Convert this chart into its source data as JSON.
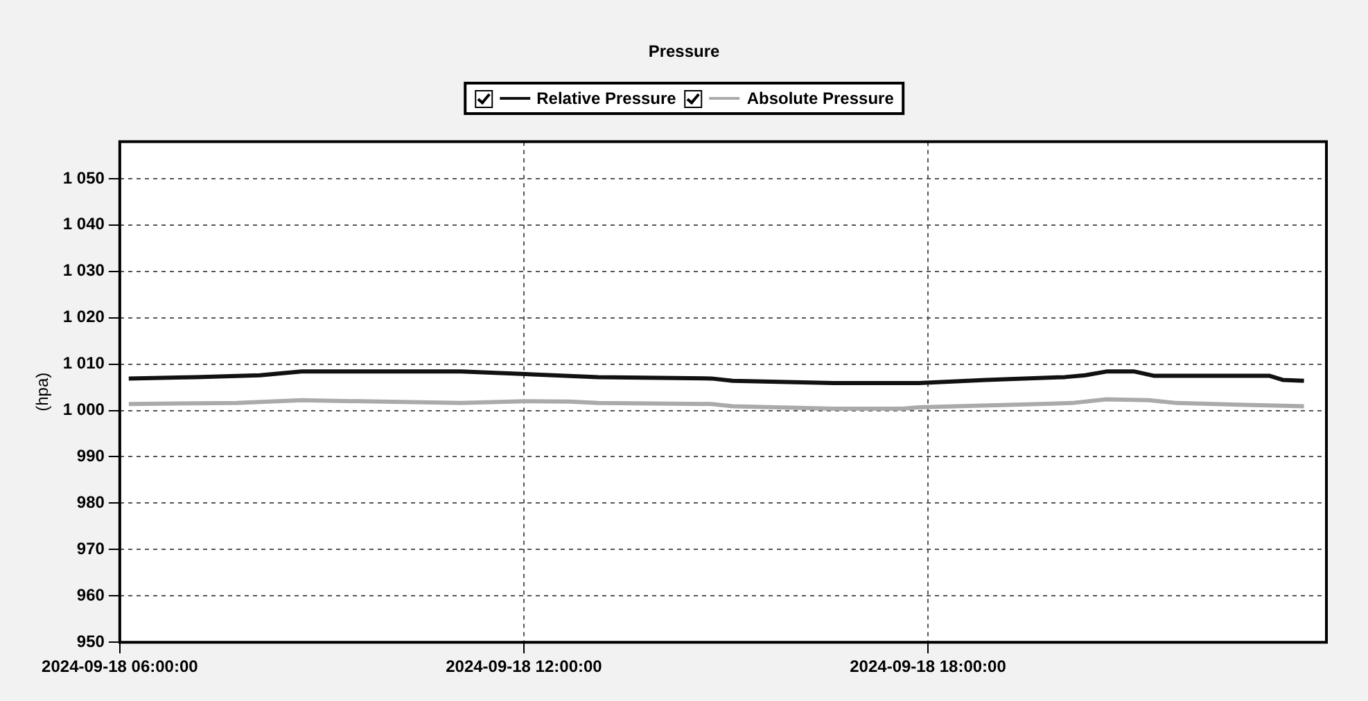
{
  "chart_data": {
    "type": "line",
    "title": "Pressure",
    "ylabel": "(hpa)",
    "series": [
      {
        "name": "Relative Pressure",
        "color": "#111111",
        "x": [
          "2024-09-18T06:08",
          "2024-09-18T07:08",
          "2024-09-18T08:05",
          "2024-09-18T08:42",
          "2024-09-18T11:04",
          "2024-09-18T13:06",
          "2024-09-18T14:47",
          "2024-09-18T15:06",
          "2024-09-18T16:36",
          "2024-09-18T17:52",
          "2024-09-18T18:52",
          "2024-09-18T20:02",
          "2024-09-18T20:20",
          "2024-09-18T20:39",
          "2024-09-18T21:04",
          "2024-09-18T21:21",
          "2024-09-18T23:04",
          "2024-09-18T23:16",
          "2024-09-18T23:35"
        ],
        "values": [
          1006.9,
          1007.2,
          1007.6,
          1008.4,
          1008.4,
          1007.2,
          1006.9,
          1006.4,
          1005.9,
          1005.9,
          1006.6,
          1007.2,
          1007.6,
          1008.4,
          1008.4,
          1007.5,
          1007.5,
          1006.6,
          1006.4
        ]
      },
      {
        "name": "Absolute Pressure",
        "color": "#aaaaaa",
        "x": [
          "2024-09-18T06:08",
          "2024-09-18T07:44",
          "2024-09-18T08:42",
          "2024-09-18T11:04",
          "2024-09-18T12:00",
          "2024-09-18T12:41",
          "2024-09-18T13:06",
          "2024-09-18T14:47",
          "2024-09-18T15:06",
          "2024-09-18T16:36",
          "2024-09-18T17:37",
          "2024-09-18T17:52",
          "2024-09-18T19:11",
          "2024-09-18T20:08",
          "2024-09-18T20:39",
          "2024-09-18T21:17",
          "2024-09-18T21:42",
          "2024-09-18T23:35"
        ],
        "values": [
          1001.4,
          1001.6,
          1002.2,
          1001.6,
          1002.0,
          1001.9,
          1001.6,
          1001.4,
          1000.9,
          1000.4,
          1000.4,
          1000.7,
          1001.2,
          1001.6,
          1002.4,
          1002.2,
          1001.6,
          1000.9
        ]
      }
    ],
    "xlim": [
      "2024-09-18T06:00",
      "2024-09-18T23:55"
    ],
    "xticks": [
      {
        "value": "2024-09-18T06:00",
        "label": "2024-09-18 06:00:00"
      },
      {
        "value": "2024-09-18T12:00",
        "label": "2024-09-18 12:00:00"
      },
      {
        "value": "2024-09-18T18:00",
        "label": "2024-09-18 18:00:00"
      }
    ],
    "ylim": [
      950,
      1058
    ],
    "yticks": [
      950,
      960,
      970,
      980,
      990,
      {
        "value": 1000,
        "label": "1 000"
      },
      {
        "value": 1010,
        "label": "1 010"
      },
      {
        "value": 1020,
        "label": "1 020"
      },
      {
        "value": 1030,
        "label": "1 030"
      },
      {
        "value": 1040,
        "label": "1 040"
      },
      {
        "value": 1050,
        "label": "1 050"
      }
    ],
    "grid": true,
    "legend": "top",
    "marker": "none",
    "line_style": "solid"
  }
}
